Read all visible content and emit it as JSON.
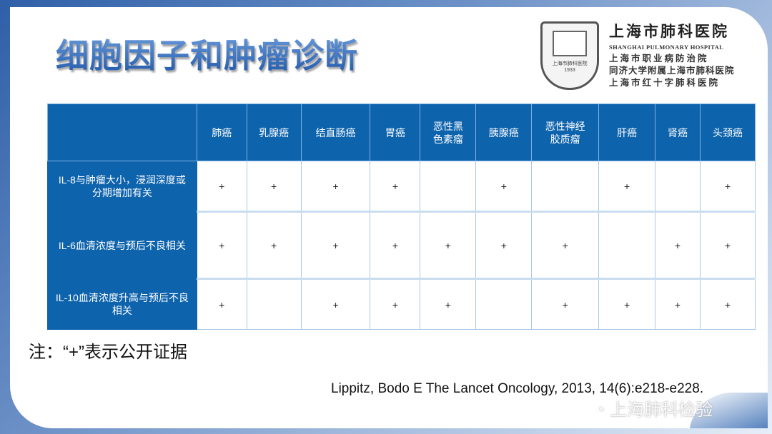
{
  "title": "细胞因子和肿瘤诊断",
  "logo": {
    "name_cn": "上海市肺科医院",
    "name_en": "SHANGHAI PULMONARY HOSPITAL",
    "lines": [
      "上海市职业病防治院",
      "同济大学附属上海市肺科医院",
      "上海市红十字肺科医院"
    ],
    "seal_text": "上海市肺科医院 1933"
  },
  "table": {
    "columns": [
      "肺癌",
      "乳腺癌",
      "结直肠癌",
      "胃癌",
      "恶性黑色素瘤",
      "胰腺癌",
      "恶性神经胶质瘤",
      "肝癌",
      "肾癌",
      "头颈癌"
    ],
    "rows": [
      {
        "label": "IL-8与肿瘤大小，浸润深度或分期增加有关",
        "cells": [
          "+",
          "+",
          "+",
          "+",
          "",
          "+",
          "",
          "+",
          "",
          "+"
        ]
      },
      {
        "label": "IL-6血清浓度与预后不良相关",
        "cells": [
          "+",
          "+",
          "+",
          "+",
          "+",
          "+",
          "+",
          "",
          "+",
          "+"
        ]
      },
      {
        "label": "IL-10血清浓度升高与预后不良相关",
        "cells": [
          "+",
          "",
          "+",
          "+",
          "+",
          "",
          "+",
          "+",
          "+",
          "+"
        ]
      }
    ]
  },
  "note": "注：“+”表示公开证据",
  "citation": "Lippitz, Bodo E The Lancet Oncology, 2013, 14(6):e218-e228.",
  "watermark": "上海肺科检验",
  "colors": {
    "header_bg": "#0e63ad",
    "title": "#2a63b8"
  }
}
